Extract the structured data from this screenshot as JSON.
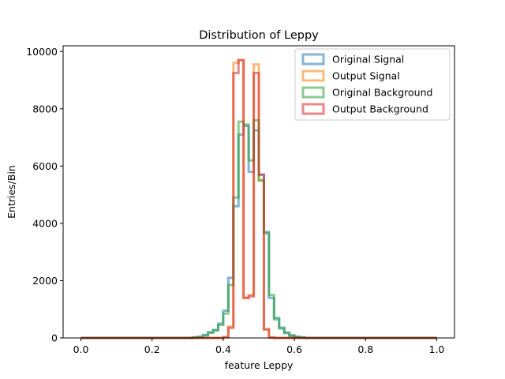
{
  "chart_data": {
    "type": "bar",
    "subtype": "step-histogram",
    "title": "Distribution of Leppy",
    "xlabel": "feature Leppy",
    "ylabel": "Entries/Bin",
    "xlim": [
      -0.05,
      1.05
    ],
    "ylim": [
      0,
      10200
    ],
    "xticks": [
      0.0,
      0.2,
      0.4,
      0.6,
      0.8,
      1.0
    ],
    "xtick_labels": [
      "0.0",
      "0.2",
      "0.4",
      "0.6",
      "0.8",
      "1.0"
    ],
    "yticks": [
      0,
      2000,
      4000,
      6000,
      8000,
      10000
    ],
    "ytick_labels": [
      "0",
      "2000",
      "4000",
      "6000",
      "8000",
      "10000"
    ],
    "grid": false,
    "legend_position": "top-right",
    "bins": {
      "start": 0.0,
      "end": 1.0,
      "count": 70
    },
    "series": [
      {
        "name": "Original Signal",
        "color": "#1f77b4",
        "nonzero_bins": {
          "22": 20,
          "23": 40,
          "24": 100,
          "25": 200,
          "26": 280,
          "27": 500,
          "28": 950,
          "29": 2100,
          "30": 4600,
          "31": 7100,
          "32": 7400,
          "33": 5800,
          "34": 7250,
          "35": 5700,
          "36": 3700,
          "37": 1400,
          "38": 700,
          "39": 360,
          "40": 190,
          "41": 90,
          "42": 45,
          "43": 20
        }
      },
      {
        "name": "Output Signal",
        "color": "#ff7f0e",
        "nonzero_bins": {
          "28": 30,
          "29": 400,
          "30": 9600,
          "31": 9700,
          "32": 1400,
          "33": 1500,
          "34": 9550,
          "35": 5500,
          "36": 300,
          "37": 20
        }
      },
      {
        "name": "Original Background",
        "color": "#2ca02c",
        "nonzero_bins": {
          "22": 15,
          "23": 35,
          "24": 90,
          "25": 180,
          "26": 260,
          "27": 450,
          "28": 850,
          "29": 1850,
          "30": 4900,
          "31": 7550,
          "32": 7450,
          "33": 6200,
          "34": 7600,
          "35": 5500,
          "36": 3650,
          "37": 1500,
          "38": 650,
          "39": 330,
          "40": 170,
          "41": 80,
          "42": 40,
          "43": 15
        }
      },
      {
        "name": "Output Background",
        "color": "#d62728",
        "nonzero_bins": {
          "28": 25,
          "29": 350,
          "30": 9250,
          "31": 9700,
          "32": 1400,
          "33": 1450,
          "34": 9250,
          "35": 5700,
          "36": 300,
          "37": 15
        }
      }
    ]
  }
}
